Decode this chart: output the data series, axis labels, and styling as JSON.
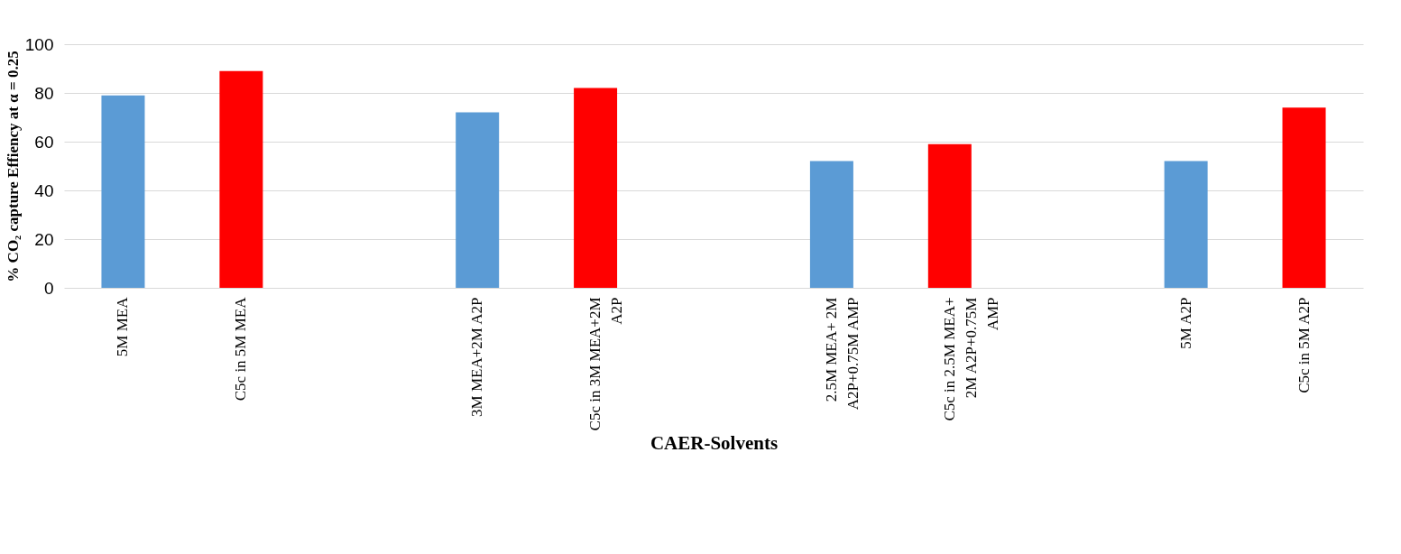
{
  "chart_data": {
    "type": "bar",
    "xlabel": "CAER-Solvents",
    "ylabel": "% CO₂ capture Effiency at α = 0.25",
    "categories": [
      "5M MEA",
      "C5c in 5M MEA",
      null,
      "3M MEA+2M A2P",
      "C5c in 3M MEA+2M\nA2P",
      null,
      "2.5M MEA+ 2M\nA2P+0.75M AMP",
      "C5c in 2.5M MEA+\n2M A2P+0.75M\nAMP",
      null,
      "5M A2P",
      "C5c in 5M A2P"
    ],
    "values": [
      79,
      89,
      null,
      72,
      82,
      null,
      52,
      59,
      null,
      52,
      74
    ],
    "colors": [
      "#5b9bd5",
      "#ff0000",
      null,
      "#5b9bd5",
      "#ff0000",
      null,
      "#5b9bd5",
      "#ff0000",
      null,
      "#5b9bd5",
      "#ff0000"
    ],
    "ylim": [
      0,
      100
    ],
    "yticks": [
      0,
      20,
      40,
      60,
      80,
      100
    ],
    "grid": "y"
  }
}
